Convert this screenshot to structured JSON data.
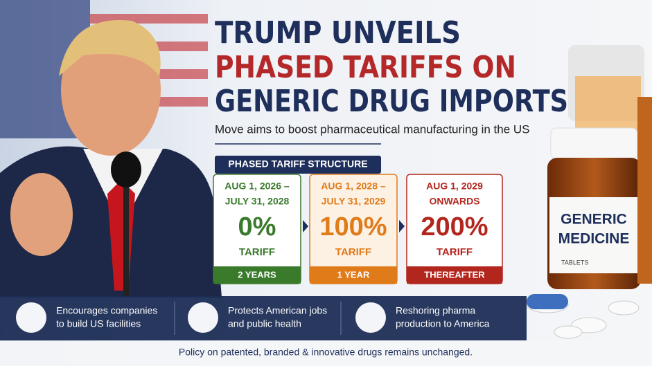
{
  "headline": {
    "lines": [
      "TRUMP UNVEILS",
      "PHASED TARIFFS ON",
      "GENERIC DRUG IMPORTS"
    ],
    "subtitle": "Move aims to boost pharmaceutical manufacturing in the US"
  },
  "tariff_structure": {
    "title": "PHASED TARIFF STRUCTURE",
    "phases": [
      {
        "period": [
          "AUG 1, 2026 –",
          "JULY 31, 2028"
        ],
        "rate": "0%",
        "label": "TARIFF",
        "duration": "2 YEARS"
      },
      {
        "period": [
          "AUG 1, 2028 –",
          "JULY 31, 2029"
        ],
        "rate": "100%",
        "label": "TARIFF",
        "duration": "1 YEAR"
      },
      {
        "period": [
          "AUG 1, 2029",
          "ONWARDS"
        ],
        "rate": "200%",
        "label": "TARIFF",
        "duration": "THEREAFTER"
      }
    ]
  },
  "benefits": [
    {
      "lines": [
        "Encourages companies",
        "to build US facilities"
      ]
    },
    {
      "lines": [
        "Protects American jobs",
        "and public health"
      ]
    },
    {
      "lines": [
        "Reshoring pharma",
        "production to America"
      ]
    }
  ],
  "bottle_label": {
    "lines": [
      "GENERIC",
      "MEDICINE"
    ],
    "caption": "TABLETS"
  },
  "footer": "Policy on patented, branded & innovative drugs remains unchanged."
}
